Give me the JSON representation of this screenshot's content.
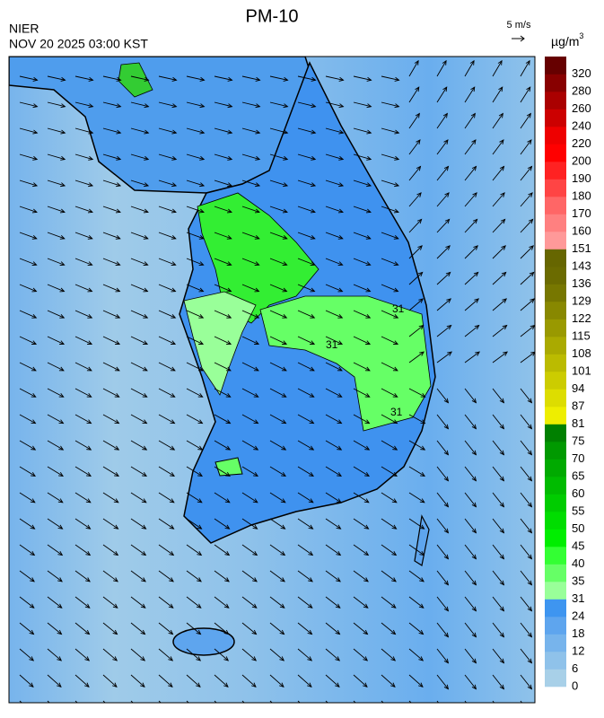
{
  "header": {
    "title": "PM-10",
    "agency": "NIER",
    "timestamp": "NOV 20 2025 03:00 KST",
    "wind_scale": "5 m/s"
  },
  "colorbar": {
    "unit": "µg/m",
    "unit_sup": "3",
    "ticks": [
      0,
      6,
      12,
      18,
      24,
      31,
      35,
      40,
      45,
      50,
      55,
      60,
      65,
      70,
      75,
      81,
      87,
      94,
      101,
      108,
      115,
      122,
      129,
      136,
      143,
      151,
      160,
      170,
      180,
      190,
      200,
      220,
      240,
      260,
      280,
      320
    ],
    "colors": [
      "#a8d0e8",
      "#8fc2ea",
      "#77b4ec",
      "#5ea5ee",
      "#3e95f0",
      "#99ff99",
      "#66ff66",
      "#33ff33",
      "#00ee00",
      "#00dd00",
      "#00cc00",
      "#00bb00",
      "#00aa00",
      "#009900",
      "#008000",
      "#eeee00",
      "#dddd00",
      "#cccc00",
      "#bbbb00",
      "#aaaa00",
      "#999900",
      "#888800",
      "#777700",
      "#6b6b00",
      "#666600",
      "#ff9999",
      "#ff8080",
      "#ff6666",
      "#ff4444",
      "#ff2222",
      "#ff0000",
      "#ee0000",
      "#cc0000",
      "#aa0000",
      "#880000",
      "#660000"
    ]
  },
  "map": {
    "contour_labels": [
      "31",
      "31",
      "31"
    ]
  }
}
